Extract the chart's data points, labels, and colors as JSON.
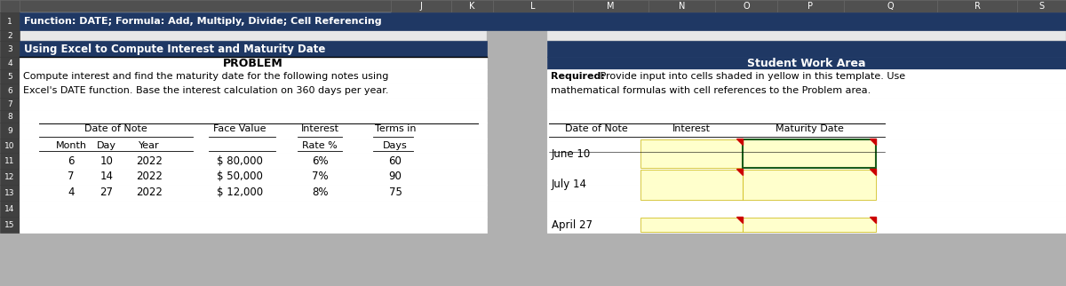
{
  "bg_color": "#b0b0b0",
  "cell_bg": "#e8e8e8",
  "white": "#FFFFFF",
  "dark_blue": "#1F3864",
  "row_num_bg": "#404040",
  "row_num_text": "#FFFFFF",
  "col_hdr_bg": "#505050",
  "col_hdr_text": "#FFFFFF",
  "yellow_cell": "#FFFFCC",
  "yellow_border": "#c8b400",
  "green_border": "#1a5c1a",
  "red_tri": "#cc0000",
  "grid_line": "#c0c0c0",
  "dark_line": "#888888",
  "row1_text": "Function: DATE; Formula: Add, Multiply, Divide; Cell Referencing",
  "row3_left": "Using Excel to Compute Interest and Maturity Date",
  "row3_right": "Student Work Area",
  "problem_label": "PROBLEM",
  "row5_text": "Compute interest and find the maturity date for the following notes using",
  "row6_text": "Excel's DATE function. Base the interest calculation on 360 days per year.",
  "req_bold": "Required:",
  "req_rest": " Provide input into cells shaded in yellow in this template. Use",
  "req_line2": "mathematical formulas with cell references to the Problem area.",
  "hdr9_don": "Date of Note",
  "hdr9_fv": "Face Value",
  "hdr9_int": "Interest",
  "hdr9_terms": "Terms in",
  "hdr10_month": "Month",
  "hdr10_day": "Day",
  "hdr10_year": "Year",
  "hdr10_rate": "Rate %",
  "hdr10_days": "Days",
  "hdr_r_don": "Date of Note",
  "hdr_r_int": "Interest",
  "hdr_r_mat": "Maturity Date",
  "data_rows": [
    {
      "month": "6",
      "day": "10",
      "year": "2022",
      "fv": "$ 80,000",
      "rate": "6%",
      "terms": "60",
      "label": "June 10"
    },
    {
      "month": "7",
      "day": "14",
      "year": "2022",
      "fv": "$ 50,000",
      "rate": "7%",
      "terms": "90",
      "label": "July 14"
    },
    {
      "month": "4",
      "day": "27",
      "year": "2022",
      "fv": "$ 12,000",
      "rate": "8%",
      "terms": "75",
      "label": "April 27"
    }
  ],
  "col_letters": [
    "J",
    "K",
    "L",
    "M",
    "N",
    "O",
    "P",
    "Q",
    "R",
    "S"
  ],
  "col_letter_x": [
    440,
    508,
    555,
    645,
    730,
    805,
    875,
    950,
    1055,
    1145
  ],
  "col_letter_w": [
    68,
    47,
    90,
    85,
    75,
    70,
    75,
    105,
    90,
    55
  ]
}
